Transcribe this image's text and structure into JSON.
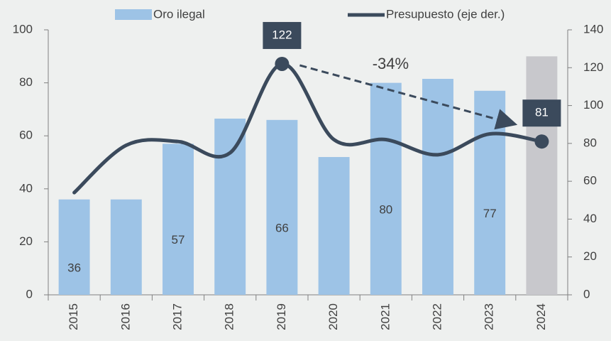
{
  "chart_data": {
    "type": "bar",
    "categories": [
      "2015",
      "2016",
      "2017",
      "2018",
      "2019",
      "2020",
      "2021",
      "2022",
      "2023",
      "2024"
    ],
    "series": [
      {
        "name": "Oro ilegal",
        "color": "#9dc3e6",
        "colors": [
          "#9dc3e6",
          "#9dc3e6",
          "#9dc3e6",
          "#9dc3e6",
          "#9dc3e6",
          "#9dc3e6",
          "#9dc3e6",
          "#9dc3e6",
          "#9dc3e6",
          "#c8c8cc"
        ],
        "values": [
          36,
          36,
          57,
          66.5,
          66,
          52,
          80,
          81.5,
          77,
          90
        ],
        "value_labels": [
          "36",
          null,
          "57",
          null,
          "66",
          null,
          "80",
          null,
          "77",
          null
        ]
      },
      {
        "name": "Presupuesto (eje der.)",
        "type": "line",
        "axis": "y2",
        "color": "#3b4a5c",
        "values": [
          54,
          79,
          81,
          75,
          122,
          82,
          82,
          74,
          85,
          81
        ],
        "value_labels": [
          null,
          null,
          null,
          null,
          "122",
          null,
          null,
          null,
          null,
          "81"
        ]
      }
    ],
    "annotations": [
      {
        "text": "-34%"
      }
    ],
    "ylim": [
      0,
      100
    ],
    "yticks": [
      0,
      20,
      40,
      60,
      80,
      100
    ],
    "y2lim": [
      0,
      140
    ],
    "y2ticks": [
      0,
      20,
      40,
      60,
      80,
      100,
      120,
      140
    ]
  }
}
